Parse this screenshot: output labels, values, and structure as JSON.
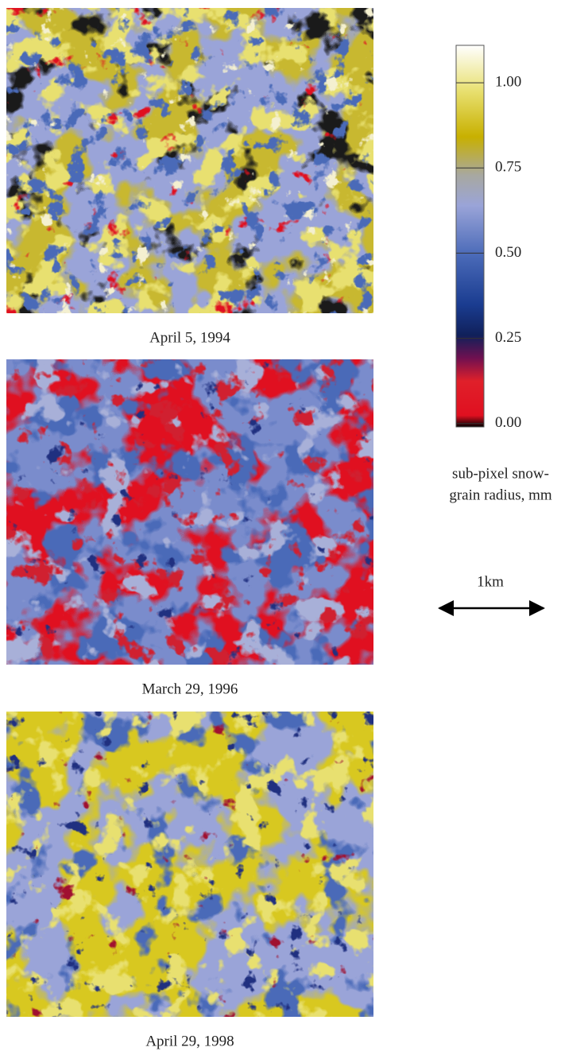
{
  "panels": [
    {
      "caption": "April 5, 1994"
    },
    {
      "caption": "March 29, 1996"
    },
    {
      "caption": "April 29, 1998"
    }
  ],
  "colorbar": {
    "ylim": [
      -0.01,
      1.11
    ],
    "yticks": [
      {
        "value": 0,
        "label": "0.00"
      },
      {
        "value": 0.25,
        "label": "0.25"
      },
      {
        "value": 0.5,
        "label": "0.50"
      },
      {
        "value": 0.75,
        "label": "0.75"
      },
      {
        "value": 1,
        "label": "1.00"
      }
    ],
    "label": [
      "sub-pixel snow-",
      "grain radius, mm"
    ]
  },
  "scale_bar": {
    "label": "1km"
  }
}
